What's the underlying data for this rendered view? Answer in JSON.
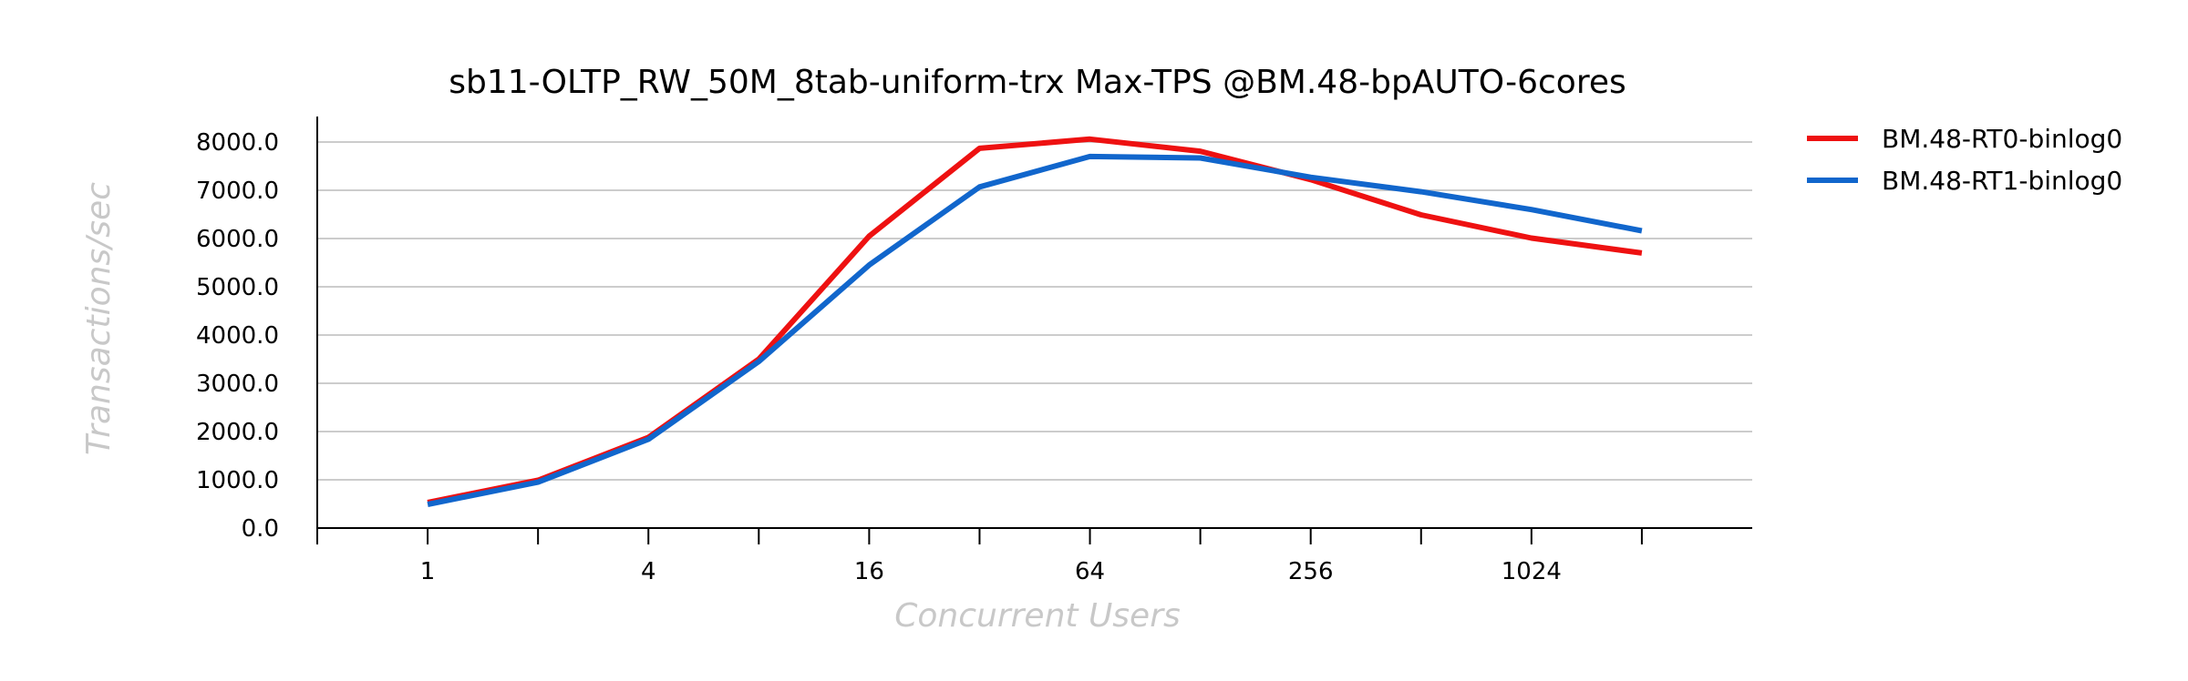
{
  "chart_data": {
    "type": "line",
    "title": "sb11-OLTP_RW_50M_8tab-uniform-trx Max-TPS @BM.48-bpAUTO-6cores",
    "xlabel": "Concurrent Users",
    "ylabel": "Transactions/sec",
    "x_scale": "log2",
    "x": [
      1,
      2,
      4,
      8,
      16,
      32,
      64,
      128,
      256,
      512,
      1024,
      2048
    ],
    "x_tick_labels": [
      "1",
      "4",
      "16",
      "64",
      "256",
      "1024"
    ],
    "x_tick_values": [
      1,
      4,
      16,
      64,
      256,
      1024
    ],
    "xlim": [
      0.5,
      4096
    ],
    "y_tick_labels": [
      "0.0",
      "1000.0",
      "2000.0",
      "3000.0",
      "4000.0",
      "5000.0",
      "6000.0",
      "7000.0",
      "8000.0"
    ],
    "ylim": [
      0,
      8000
    ],
    "grid": true,
    "legend_position": "top-right-outside",
    "series": [
      {
        "name": "BM.48-RT0-binlog0",
        "color": "#ee1111",
        "values": [
          530,
          990,
          1880,
          3500,
          6050,
          7870,
          8060,
          7810,
          7220,
          6490,
          6010,
          5700
        ]
      },
      {
        "name": "BM.48-RT1-binlog0",
        "color": "#1166cc",
        "values": [
          490,
          950,
          1840,
          3450,
          5450,
          7070,
          7700,
          7670,
          7270,
          6970,
          6600,
          6160
        ]
      }
    ]
  }
}
